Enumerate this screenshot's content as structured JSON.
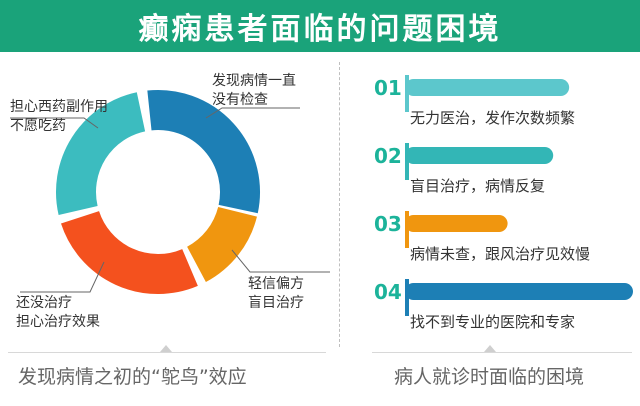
{
  "header": {
    "title": "癫痫患者面临的问题困境"
  },
  "left_panel": {
    "caption": "发现病情之初的“鸵鸟”效应",
    "donut": {
      "segments": [
        {
          "label_lines": [
            "发现病情一直",
            "没有检查"
          ],
          "color": "#1d7fb5"
        },
        {
          "label_lines": [
            "轻信偏方",
            "盲目治疗"
          ],
          "color": "#f0960f"
        },
        {
          "label_lines": [
            "还没治疗",
            "担心治疗效果"
          ],
          "color": "#f4511e"
        },
        {
          "label_lines": [
            "担心西药副作用",
            "不愿吃药"
          ],
          "color": "#3cbcbf"
        }
      ]
    }
  },
  "right_panel": {
    "caption": "病人就诊时面临的困境",
    "items": [
      {
        "num": "01",
        "text": "无力医治，发作次数频繁",
        "level": 0.72,
        "bar_color": "#5cc7cc",
        "num_color": "#1cb39a"
      },
      {
        "num": "02",
        "text": "盲目治疗，病情反复",
        "level": 0.65,
        "bar_color": "#33b6b6",
        "num_color": "#1cb39a"
      },
      {
        "num": "03",
        "text": "病情未查，跟风治疗见效慢",
        "level": 0.45,
        "bar_color": "#f0960f",
        "num_color": "#1cb39a"
      },
      {
        "num": "04",
        "text": "找不到专业的医院和专家",
        "level": 1.0,
        "bar_color": "#1d7fb5",
        "num_color": "#1cb39a"
      }
    ]
  }
}
